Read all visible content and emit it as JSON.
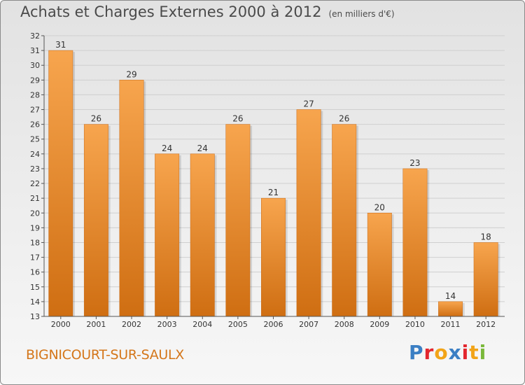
{
  "header": {
    "title": "Achats et Charges Externes 2000 à 2012",
    "unit": "(en milliers d'€)"
  },
  "town": "BIGNICOURT-SUR-SAULX",
  "logo": {
    "text": "Proxiti",
    "letters": [
      {
        "ch": "P",
        "color": "#3b7fc4"
      },
      {
        "ch": "r",
        "color": "#e3262d"
      },
      {
        "ch": "o",
        "color": "#f2a418"
      },
      {
        "ch": "x",
        "color": "#3b7fc4"
      },
      {
        "ch": "i",
        "color": "#e3262d"
      },
      {
        "ch": "t",
        "color": "#f2a418"
      },
      {
        "ch": "i",
        "color": "#7ab83a"
      }
    ]
  },
  "chart_data": {
    "type": "bar",
    "title": "Achats et Charges Externes 2000 à 2012",
    "subtitle": "(en milliers d'€)",
    "categories": [
      "2000",
      "2001",
      "2002",
      "2003",
      "2004",
      "2005",
      "2006",
      "2007",
      "2008",
      "2009",
      "2010",
      "2011",
      "2012"
    ],
    "values": [
      31,
      26,
      29,
      24,
      24,
      26,
      21,
      27,
      26,
      20,
      23,
      14,
      18
    ],
    "ylim": [
      13,
      32
    ],
    "yticks": [
      13,
      14,
      15,
      16,
      17,
      18,
      19,
      20,
      21,
      22,
      23,
      24,
      25,
      26,
      27,
      28,
      29,
      30,
      31,
      32
    ],
    "grid": true,
    "bar_color_top": "#f7a54e",
    "bar_color_bottom": "#cf6e12"
  }
}
